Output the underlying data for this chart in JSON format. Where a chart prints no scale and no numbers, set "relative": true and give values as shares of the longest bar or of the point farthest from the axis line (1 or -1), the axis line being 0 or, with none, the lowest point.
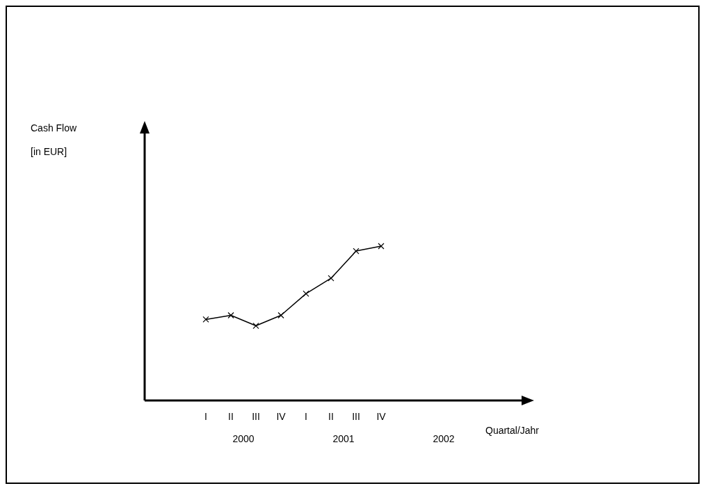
{
  "chart_data": {
    "type": "line",
    "relative": true,
    "ylabel": "Cash Flow\n[in EUR]",
    "categories": [
      "I",
      "II",
      "III",
      "IV",
      "I",
      "II",
      "III",
      "IV"
    ],
    "series": [
      {
        "color": "#000000",
        "values": [
          0.525,
          0.552,
          0.484,
          0.552,
          0.692,
          0.792,
          0.968,
          1
        ]
      }
    ],
    "marker": "cross",
    "line_style": "solid",
    "annotations": [
      "2000",
      "2001",
      "2002",
      "Quartal/Jahr"
    ]
  }
}
